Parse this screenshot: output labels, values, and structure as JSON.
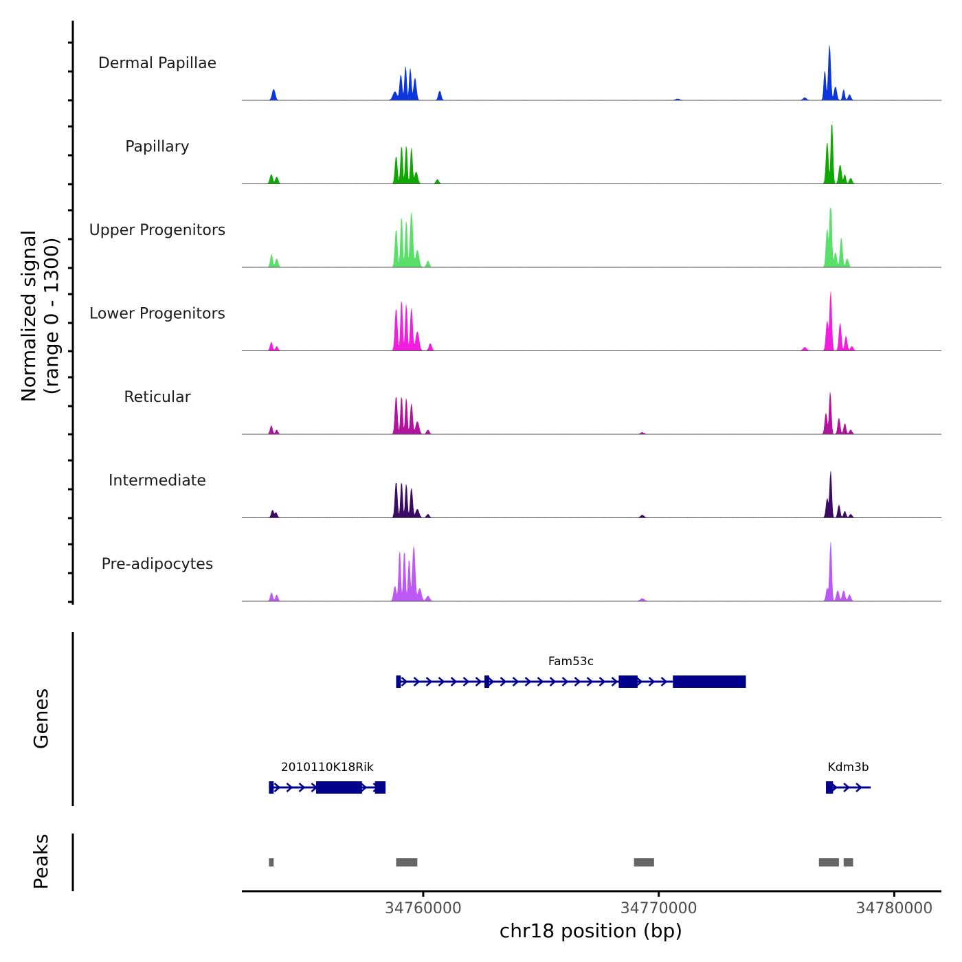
{
  "chart_data": {
    "type": "area",
    "title": "",
    "chromosome": "chr18",
    "xlabel": "chr18 position (bp)",
    "ylabel_line1": "Normalized signal",
    "ylabel_line2": "(range 0 - 1300)",
    "yrange": [
      0,
      1300
    ],
    "xlim": [
      34752300,
      34782000
    ],
    "x_ticks": [
      34760000,
      34770000,
      34780000
    ],
    "x_tick_labels": [
      "34760000",
      "34770000",
      "34780000"
    ],
    "genes_label": "Genes",
    "peaks_label": "Peaks",
    "series": [
      {
        "name": "Dermal Papillae",
        "color": "#0b35dd",
        "peaks": [
          [
            34753650,
            260,
            90
          ],
          [
            34758800,
            200,
            120
          ],
          [
            34759050,
            600,
            70
          ],
          [
            34759250,
            800,
            60
          ],
          [
            34759450,
            750,
            60
          ],
          [
            34759650,
            520,
            80
          ],
          [
            34760700,
            220,
            80
          ],
          [
            34777050,
            700,
            60
          ],
          [
            34777250,
            1300,
            70
          ],
          [
            34777500,
            320,
            80
          ],
          [
            34777850,
            250,
            60
          ],
          [
            34778100,
            130,
            80
          ],
          [
            34776200,
            60,
            100
          ],
          [
            34770800,
            30,
            120
          ]
        ]
      },
      {
        "name": "Papillary",
        "color": "#0fa800",
        "peaks": [
          [
            34753550,
            220,
            80
          ],
          [
            34753780,
            160,
            80
          ],
          [
            34758850,
            650,
            70
          ],
          [
            34759080,
            900,
            60
          ],
          [
            34759280,
            900,
            60
          ],
          [
            34759500,
            850,
            60
          ],
          [
            34759700,
            280,
            90
          ],
          [
            34760600,
            100,
            80
          ],
          [
            34777150,
            980,
            70
          ],
          [
            34777350,
            1500,
            60
          ],
          [
            34777700,
            450,
            80
          ],
          [
            34777900,
            220,
            60
          ],
          [
            34778150,
            130,
            80
          ]
        ]
      },
      {
        "name": "Upper Progenitors",
        "color": "#5ae06a",
        "peaks": [
          [
            34753560,
            300,
            70
          ],
          [
            34753780,
            200,
            80
          ],
          [
            34758850,
            900,
            70
          ],
          [
            34759080,
            1200,
            60
          ],
          [
            34759280,
            1100,
            60
          ],
          [
            34759500,
            1300,
            80
          ],
          [
            34759750,
            400,
            100
          ],
          [
            34760200,
            150,
            80
          ],
          [
            34777150,
            900,
            70
          ],
          [
            34777300,
            1700,
            60
          ],
          [
            34777500,
            350,
            80
          ],
          [
            34777750,
            700,
            70
          ],
          [
            34778000,
            200,
            80
          ]
        ]
      },
      {
        "name": "Lower Progenitors",
        "color": "#f11ede",
        "peaks": [
          [
            34753550,
            200,
            70
          ],
          [
            34753780,
            100,
            70
          ],
          [
            34758850,
            1000,
            70
          ],
          [
            34759080,
            1200,
            60
          ],
          [
            34759280,
            1100,
            60
          ],
          [
            34759500,
            1000,
            70
          ],
          [
            34759750,
            450,
            100
          ],
          [
            34760300,
            170,
            80
          ],
          [
            34776200,
            80,
            100
          ],
          [
            34777150,
            700,
            70
          ],
          [
            34777300,
            1400,
            60
          ],
          [
            34777700,
            650,
            70
          ],
          [
            34777950,
            340,
            70
          ],
          [
            34778200,
            100,
            80
          ]
        ]
      },
      {
        "name": "Reticular",
        "color": "#b0149e",
        "peaks": [
          [
            34753550,
            200,
            70
          ],
          [
            34753780,
            100,
            70
          ],
          [
            34758850,
            900,
            70
          ],
          [
            34759080,
            900,
            60
          ],
          [
            34759280,
            850,
            60
          ],
          [
            34759500,
            720,
            70
          ],
          [
            34759750,
            300,
            100
          ],
          [
            34760200,
            100,
            80
          ],
          [
            34769300,
            40,
            100
          ],
          [
            34777100,
            500,
            70
          ],
          [
            34777280,
            1000,
            60
          ],
          [
            34777650,
            380,
            70
          ],
          [
            34777900,
            250,
            70
          ],
          [
            34778150,
            100,
            80
          ]
        ]
      },
      {
        "name": "Intermediate",
        "color": "#3b0a64",
        "peaks": [
          [
            34753600,
            180,
            70
          ],
          [
            34753750,
            120,
            70
          ],
          [
            34758850,
            850,
            70
          ],
          [
            34759080,
            850,
            60
          ],
          [
            34759280,
            800,
            60
          ],
          [
            34759500,
            700,
            70
          ],
          [
            34759750,
            200,
            100
          ],
          [
            34760200,
            80,
            80
          ],
          [
            34769300,
            60,
            100
          ],
          [
            34777150,
            450,
            70
          ],
          [
            34777300,
            1100,
            60
          ],
          [
            34777650,
            300,
            70
          ],
          [
            34777900,
            150,
            70
          ],
          [
            34778150,
            80,
            80
          ]
        ]
      },
      {
        "name": "Pre-adipocytes",
        "color": "#bc59f4",
        "peaks": [
          [
            34753560,
            200,
            70
          ],
          [
            34753780,
            150,
            70
          ],
          [
            34758800,
            350,
            80
          ],
          [
            34759000,
            1200,
            60
          ],
          [
            34759200,
            1200,
            60
          ],
          [
            34759400,
            1000,
            60
          ],
          [
            34759600,
            1300,
            80
          ],
          [
            34759850,
            300,
            100
          ],
          [
            34760200,
            120,
            100
          ],
          [
            34769300,
            60,
            120
          ],
          [
            34777150,
            300,
            70
          ],
          [
            34777300,
            1400,
            60
          ],
          [
            34777600,
            250,
            80
          ],
          [
            34777850,
            250,
            80
          ],
          [
            34778100,
            150,
            80
          ]
        ]
      }
    ],
    "genes": [
      {
        "name": "Fam53c",
        "start": 34758850,
        "end": 34773700,
        "strand": "+",
        "row": 1,
        "exons": [
          [
            34758850,
            34759050
          ],
          [
            34762600,
            34762800
          ],
          [
            34768300,
            34769100
          ],
          [
            34770600,
            34773700
          ]
        ]
      },
      {
        "name": "2010110K18Rik",
        "start": 34753450,
        "end": 34758400,
        "strand": "+",
        "row": 2,
        "exons": [
          [
            34753450,
            34753650
          ],
          [
            34755450,
            34757400
          ],
          [
            34757950,
            34758400
          ]
        ]
      },
      {
        "name": "Kdm3b",
        "start": 34777100,
        "end": 34779000,
        "strand": "+",
        "row": 2,
        "exons": [
          [
            34777100,
            34777400
          ]
        ]
      }
    ],
    "peaks_regions": [
      [
        34753450,
        34753650
      ],
      [
        34758850,
        34759750
      ],
      [
        34768950,
        34769800
      ],
      [
        34776800,
        34777650
      ],
      [
        34777850,
        34778250
      ]
    ]
  }
}
